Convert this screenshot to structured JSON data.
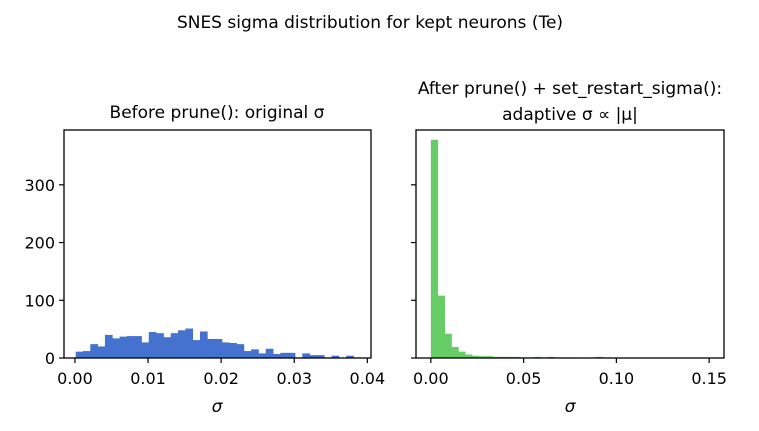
{
  "figure": {
    "suptitle": "SNES sigma distribution for kept neurons (Te)"
  },
  "chart_data": [
    {
      "type": "bar",
      "title": "Before prune(): original σ",
      "xlabel": "σ",
      "ylabel": "",
      "color": "#4472CE",
      "xlim": [
        -0.0015,
        0.0405
      ],
      "ylim": [
        0,
        395
      ],
      "xticks": [
        "0.00",
        "0.01",
        "0.02",
        "0.03",
        "0.04"
      ],
      "xtick_values": [
        0,
        0.01,
        0.02,
        0.03,
        0.04
      ],
      "yticks": [
        "0",
        "100",
        "200",
        "300"
      ],
      "ytick_values": [
        0,
        100,
        200,
        300
      ],
      "bin_start": 0.0001,
      "bin_width": 0.001,
      "values": [
        11,
        12,
        24,
        20,
        40,
        34,
        37,
        38,
        38,
        27,
        45,
        43,
        36,
        43,
        48,
        51,
        31,
        46,
        33,
        33,
        27,
        26,
        24,
        12,
        15,
        8,
        16,
        7,
        9,
        9,
        1,
        8,
        5,
        5,
        1,
        4,
        0,
        4,
        1
      ],
      "grid": false,
      "legend": "none"
    },
    {
      "type": "bar",
      "title_lines": [
        "After prune() + set_restart_sigma():",
        "adaptive σ ∝ |μ|"
      ],
      "xlabel": "σ",
      "ylabel": "",
      "color": "#66CC66",
      "xlim": [
        -0.008,
        0.158
      ],
      "ylim": [
        0,
        395
      ],
      "sharey": true,
      "xticks": [
        "0.00",
        "0.05",
        "0.10",
        "0.15"
      ],
      "xtick_values": [
        0,
        0.05,
        0.1,
        0.15
      ],
      "yticks": [],
      "ytick_values": [
        0,
        100,
        200,
        300
      ],
      "bin_start": 0.0,
      "bin_width": 0.0037,
      "values": [
        378,
        108,
        42,
        19,
        11,
        6,
        4,
        3,
        3,
        2,
        2,
        2,
        2,
        1,
        1,
        2,
        1,
        2,
        1,
        1,
        1,
        0,
        0,
        1,
        2,
        0,
        0,
        0,
        0,
        0,
        0,
        0,
        0,
        0,
        0,
        0,
        0,
        0,
        0,
        0,
        0
      ],
      "grid": false,
      "legend": "none"
    }
  ]
}
